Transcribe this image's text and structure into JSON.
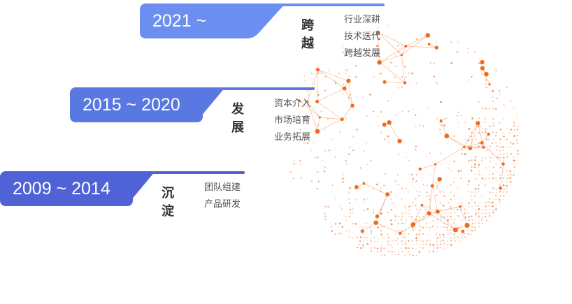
{
  "stages": [
    {
      "year": "2021 ~",
      "title": "跨越",
      "items": [
        "行业深耕",
        "技术迭代",
        "跨越发展"
      ],
      "color": "#6b8ff0"
    },
    {
      "year": "2015 ~ 2020",
      "title": "发展",
      "items": [
        "资本介入",
        "市场培育",
        "业务拓展"
      ],
      "color": "#5a78e2"
    },
    {
      "year": "2009 ~ 2014",
      "title": "沉淀",
      "items": [
        "团队组建",
        "产品研发"
      ],
      "color": "#4f63d6"
    }
  ],
  "colors": {
    "globe_accent": "#f26a1b",
    "globe_light": "#f6a777"
  }
}
